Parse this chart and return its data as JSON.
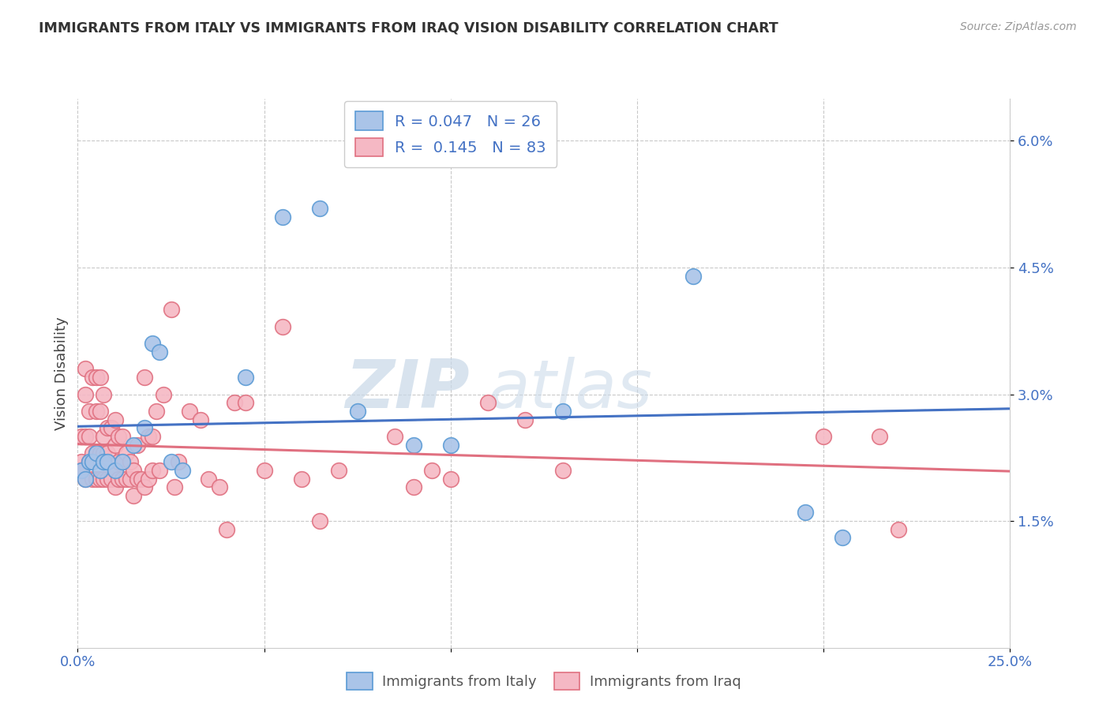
{
  "title": "IMMIGRANTS FROM ITALY VS IMMIGRANTS FROM IRAQ VISION DISABILITY CORRELATION CHART",
  "source": "Source: ZipAtlas.com",
  "ylabel": "Vision Disability",
  "xlim": [
    0.0,
    0.25
  ],
  "ylim": [
    0.0,
    0.065
  ],
  "yticks": [
    0.015,
    0.03,
    0.045,
    0.06
  ],
  "ytick_labels": [
    "1.5%",
    "3.0%",
    "4.5%",
    "6.0%"
  ],
  "xticks": [
    0.0,
    0.05,
    0.1,
    0.15,
    0.2,
    0.25
  ],
  "xtick_labels": [
    "0.0%",
    "",
    "",
    "",
    "",
    "25.0%"
  ],
  "italy_color": "#aac4e8",
  "iraq_color": "#f5b8c4",
  "italy_edge_color": "#5b9bd5",
  "iraq_edge_color": "#e07080",
  "italy_line_color": "#4472c4",
  "iraq_line_color": "#e07080",
  "dashed_line_color": "#aaaaaa",
  "italy_R": 0.047,
  "italy_N": 26,
  "iraq_R": 0.145,
  "iraq_N": 83,
  "watermark_zip": "ZIP",
  "watermark_atlas": "atlas",
  "italy_x": [
    0.001,
    0.002,
    0.003,
    0.004,
    0.005,
    0.006,
    0.007,
    0.008,
    0.01,
    0.012,
    0.015,
    0.018,
    0.02,
    0.022,
    0.025,
    0.028,
    0.045,
    0.055,
    0.065,
    0.075,
    0.09,
    0.1,
    0.13,
    0.165,
    0.195,
    0.205
  ],
  "italy_y": [
    0.021,
    0.02,
    0.022,
    0.022,
    0.023,
    0.021,
    0.022,
    0.022,
    0.021,
    0.022,
    0.024,
    0.026,
    0.036,
    0.035,
    0.022,
    0.021,
    0.032,
    0.051,
    0.052,
    0.028,
    0.024,
    0.024,
    0.028,
    0.044,
    0.016,
    0.013
  ],
  "iraq_x": [
    0.001,
    0.001,
    0.001,
    0.002,
    0.002,
    0.002,
    0.002,
    0.003,
    0.003,
    0.003,
    0.004,
    0.004,
    0.004,
    0.005,
    0.005,
    0.005,
    0.005,
    0.006,
    0.006,
    0.006,
    0.006,
    0.007,
    0.007,
    0.007,
    0.007,
    0.008,
    0.008,
    0.008,
    0.009,
    0.009,
    0.01,
    0.01,
    0.01,
    0.01,
    0.011,
    0.011,
    0.011,
    0.012,
    0.012,
    0.012,
    0.013,
    0.013,
    0.014,
    0.014,
    0.015,
    0.015,
    0.016,
    0.016,
    0.017,
    0.018,
    0.018,
    0.019,
    0.019,
    0.02,
    0.02,
    0.021,
    0.022,
    0.023,
    0.025,
    0.026,
    0.027,
    0.03,
    0.033,
    0.035,
    0.038,
    0.04,
    0.042,
    0.045,
    0.05,
    0.055,
    0.06,
    0.065,
    0.07,
    0.085,
    0.09,
    0.095,
    0.1,
    0.11,
    0.12,
    0.13,
    0.2,
    0.215,
    0.22
  ],
  "iraq_y": [
    0.022,
    0.025,
    0.021,
    0.02,
    0.025,
    0.03,
    0.033,
    0.022,
    0.025,
    0.028,
    0.02,
    0.023,
    0.032,
    0.02,
    0.023,
    0.028,
    0.032,
    0.02,
    0.023,
    0.028,
    0.032,
    0.02,
    0.023,
    0.025,
    0.03,
    0.02,
    0.023,
    0.026,
    0.02,
    0.026,
    0.019,
    0.021,
    0.024,
    0.027,
    0.02,
    0.022,
    0.025,
    0.02,
    0.022,
    0.025,
    0.02,
    0.023,
    0.02,
    0.022,
    0.018,
    0.021,
    0.02,
    0.024,
    0.02,
    0.019,
    0.032,
    0.02,
    0.025,
    0.021,
    0.025,
    0.028,
    0.021,
    0.03,
    0.04,
    0.019,
    0.022,
    0.028,
    0.027,
    0.02,
    0.019,
    0.014,
    0.029,
    0.029,
    0.021,
    0.038,
    0.02,
    0.015,
    0.021,
    0.025,
    0.019,
    0.021,
    0.02,
    0.029,
    0.027,
    0.021,
    0.025,
    0.025,
    0.014
  ]
}
